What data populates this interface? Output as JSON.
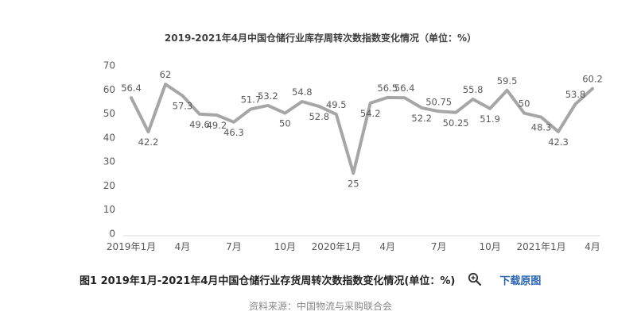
{
  "chart_data": {
    "type": "line",
    "title": "2019-2021年4月中国仓储行业库存周转次数指数变化情况（单位：%）",
    "xlabel": "",
    "ylabel": "",
    "ylim": [
      0,
      70
    ],
    "yticks": [
      0,
      10,
      20,
      30,
      40,
      50,
      60,
      70
    ],
    "grid": false,
    "legend": "none",
    "x_tick_labels": [
      {
        "index": 0,
        "label": "2019年1月"
      },
      {
        "index": 3,
        "label": "4月"
      },
      {
        "index": 6,
        "label": "7月"
      },
      {
        "index": 9,
        "label": "10月"
      },
      {
        "index": 12,
        "label": "2020年1月"
      },
      {
        "index": 15,
        "label": "4月"
      },
      {
        "index": 18,
        "label": "7月"
      },
      {
        "index": 21,
        "label": "10月"
      },
      {
        "index": 24,
        "label": "2021年1月"
      },
      {
        "index": 27,
        "label": "4月"
      }
    ],
    "categories": [
      "2019-01",
      "2019-02",
      "2019-03",
      "2019-04",
      "2019-05",
      "2019-06",
      "2019-07",
      "2019-08",
      "2019-09",
      "2019-10",
      "2019-11",
      "2019-12",
      "2020-01",
      "2020-02",
      "2020-03",
      "2020-04",
      "2020-05",
      "2020-06",
      "2020-07",
      "2020-08",
      "2020-09",
      "2020-10",
      "2020-11",
      "2020-12",
      "2021-01",
      "2021-02",
      "2021-03",
      "2021-04"
    ],
    "series": [
      {
        "values": [
          56.4,
          42.2,
          62,
          57.3,
          49.6,
          49.2,
          46.3,
          51.7,
          53.2,
          50,
          54.8,
          52.8,
          49.5,
          25,
          54.2,
          56.5,
          56.4,
          52.2,
          50.75,
          50.25,
          55.8,
          51.9,
          59.5,
          50,
          48.3,
          42.3,
          53.8,
          60.2
        ],
        "labels": [
          "56.4",
          "42.2",
          "62",
          "57.3",
          "49.6",
          "49.2",
          "46.3",
          "51.7",
          "53.2",
          "50",
          "54.8",
          "52.8",
          "49.5",
          "25",
          "54.2",
          "56.5",
          "56.4",
          "52.2",
          "50.75",
          "50.25",
          "55.8",
          "51.9",
          "59.5",
          "50",
          "48.3",
          "42.3",
          "53.8",
          "60.2"
        ],
        "label_pos": [
          "a",
          "b",
          "a",
          "b",
          "b",
          "b",
          "b",
          "a",
          "a",
          "b",
          "a",
          "b",
          "a",
          "b",
          "b",
          "a",
          "a",
          "b",
          "a",
          "b",
          "a",
          "b",
          "a",
          "a",
          "b",
          "b",
          "a",
          "a"
        ],
        "color": "#a6a6a6"
      }
    ]
  },
  "caption": {
    "text": "图1 2019年1月-2021年4月中国仓储行业存货周转次数指数变化情况(单位：%)",
    "download_label": "下载原图"
  },
  "source_text": "资料来源：中国物流与采购联合会",
  "colors": {
    "line": "#a6a6a6",
    "text": "#595959",
    "link": "#2a64b5"
  },
  "icons": {
    "zoom": "zoom-in-icon"
  }
}
